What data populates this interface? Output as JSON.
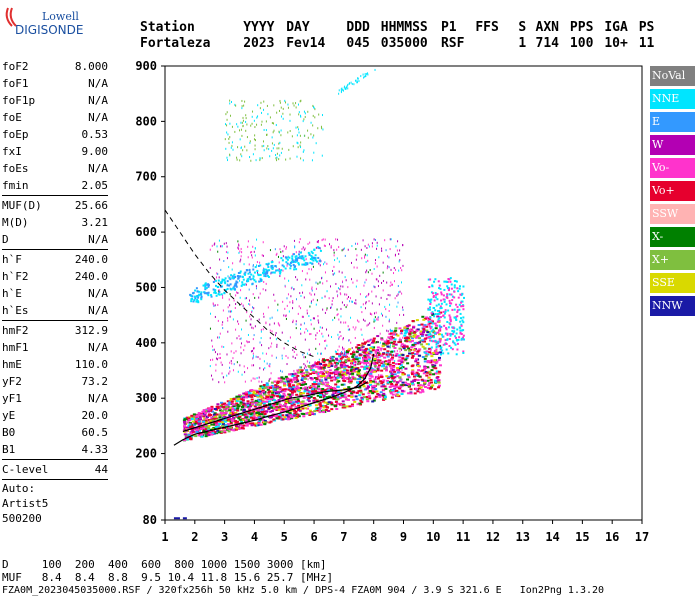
{
  "logo": {
    "line1": "Lowell",
    "line2": "DIGISONDE"
  },
  "header": {
    "labels": [
      "Station",
      "YYYY",
      "DAY",
      "DDD",
      "HHMMSS",
      "P1",
      "FFS",
      "S",
      "AXN",
      "PPS",
      "IGA",
      "PS"
    ],
    "values": [
      "Fortaleza",
      "2023",
      "Fev14",
      "045",
      "035000",
      "RSF",
      "",
      "1",
      "714",
      "100",
      "10+",
      "11"
    ]
  },
  "params": [
    {
      "name": "foF2",
      "value": "8.000"
    },
    {
      "name": "foF1",
      "value": "N/A"
    },
    {
      "name": "foF1p",
      "value": "N/A"
    },
    {
      "name": "foE",
      "value": "N/A"
    },
    {
      "name": "foEp",
      "value": "0.53"
    },
    {
      "name": "fxI",
      "value": "9.00"
    },
    {
      "name": "foEs",
      "value": "N/A"
    },
    {
      "name": "fmin",
      "value": "2.05"
    },
    {
      "sep": true
    },
    {
      "name": "MUF(D)",
      "value": "25.66"
    },
    {
      "name": "M(D)",
      "value": "3.21"
    },
    {
      "name": "D",
      "value": "N/A"
    },
    {
      "sep": true
    },
    {
      "name": "h`F",
      "value": "240.0"
    },
    {
      "name": "h`F2",
      "value": "240.0"
    },
    {
      "name": "h`E",
      "value": "N/A"
    },
    {
      "name": "h`Es",
      "value": "N/A"
    },
    {
      "sep": true
    },
    {
      "name": "hmF2",
      "value": "312.9"
    },
    {
      "name": "hmF1",
      "value": "N/A"
    },
    {
      "name": "hmE",
      "value": "110.0"
    },
    {
      "name": "yF2",
      "value": "73.2"
    },
    {
      "name": "yF1",
      "value": "N/A"
    },
    {
      "name": "yE",
      "value": "20.0"
    },
    {
      "name": "B0",
      "value": "60.5"
    },
    {
      "name": "B1",
      "value": "4.33"
    },
    {
      "sep": true
    },
    {
      "name": "C-level",
      "value": "44"
    },
    {
      "sep": true
    },
    {
      "text": "Auto:"
    },
    {
      "text": "Artist5"
    },
    {
      "text": "500200"
    }
  ],
  "legend": [
    {
      "label": "NoVal",
      "color": "#808080"
    },
    {
      "label": "NNE",
      "color": "#00e5ff"
    },
    {
      "label": "E",
      "color": "#3399ff"
    },
    {
      "label": "W",
      "color": "#b300b3"
    },
    {
      "label": "Vo-",
      "color": "#ff33cc"
    },
    {
      "label": "Vo+",
      "color": "#e6002e"
    },
    {
      "label": "SSW",
      "color": "#ffb3b3"
    },
    {
      "label": "X-",
      "color": "#008000"
    },
    {
      "label": "X+",
      "color": "#7fbf3f"
    },
    {
      "label": "SSE",
      "color": "#d9d900"
    },
    {
      "label": "NNW",
      "color": "#1a1aa6"
    }
  ],
  "muf_table": {
    "row1_label": "D",
    "row1_values": "100  200  400  600  800 1000 1500 3000",
    "row1_unit": "[km]",
    "row2_label": "MUF",
    "row2_values": "8.4  8.4  8.8  9.5 10.4 11.8 15.6 25.7",
    "row2_unit": "[MHz]"
  },
  "footer": "FZA0M_2023045035000.RSF / 320fx256h 50 kHz 5.0 km / DPS-4 FZA0M 904 / 3.9 S 321.6 E   Ion2Png 1.3.20",
  "chart_data": {
    "type": "scatter",
    "title": "",
    "xlabel": "",
    "ylabel": "",
    "xlim": [
      1,
      17
    ],
    "ylim": [
      80,
      900
    ],
    "x_ticks": [
      1,
      2,
      3,
      4,
      5,
      6,
      7,
      8,
      9,
      10,
      11,
      12,
      13,
      14,
      15,
      16,
      17
    ],
    "y_ticks": [
      80,
      200,
      300,
      400,
      500,
      600,
      700,
      800,
      900
    ],
    "grid": false,
    "legend_position": "right",
    "series": [
      {
        "name": "trace",
        "x": [
          1.3,
          1.6,
          2.0,
          2.4,
          2.8,
          3.2,
          3.6,
          4.0,
          4.5,
          5.0,
          5.5,
          6.0,
          6.5,
          7.0,
          7.4,
          7.7,
          7.9,
          8.0
        ],
        "y": [
          215,
          225,
          235,
          240,
          245,
          250,
          255,
          260,
          268,
          275,
          283,
          292,
          300,
          310,
          320,
          335,
          355,
          380
        ],
        "style": "solid"
      },
      {
        "name": "dashed",
        "x": [
          1.0,
          1.5,
          2.0,
          2.5,
          3.0,
          3.5,
          4.0,
          4.5,
          5.0,
          5.5,
          6.0
        ],
        "y": [
          640,
          600,
          560,
          525,
          495,
          470,
          445,
          420,
          400,
          385,
          375
        ],
        "style": "dashed"
      },
      {
        "name": "trace2",
        "x": [
          1.6,
          2.2,
          2.8,
          3.4,
          4.0,
          4.6,
          5.2,
          5.8,
          6.4,
          7.0,
          7.5,
          7.8
        ],
        "y": [
          240,
          250,
          260,
          270,
          280,
          290,
          300,
          305,
          312,
          315,
          320,
          330
        ],
        "style": "solid"
      }
    ]
  }
}
